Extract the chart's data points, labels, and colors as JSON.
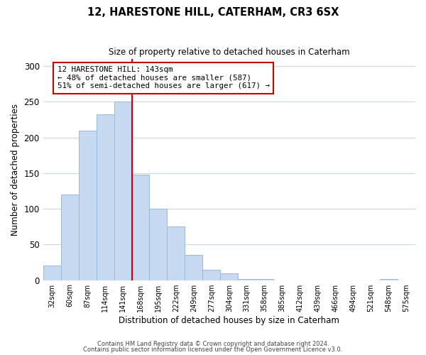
{
  "title": "12, HARESTONE HILL, CATERHAM, CR3 6SX",
  "subtitle": "Size of property relative to detached houses in Caterham",
  "xlabel": "Distribution of detached houses by size in Caterham",
  "ylabel": "Number of detached properties",
  "bar_labels": [
    "32sqm",
    "60sqm",
    "87sqm",
    "114sqm",
    "141sqm",
    "168sqm",
    "195sqm",
    "222sqm",
    "249sqm",
    "277sqm",
    "304sqm",
    "331sqm",
    "358sqm",
    "385sqm",
    "412sqm",
    "439sqm",
    "466sqm",
    "494sqm",
    "521sqm",
    "548sqm",
    "575sqm"
  ],
  "bar_values": [
    20,
    120,
    210,
    232,
    250,
    148,
    100,
    75,
    35,
    15,
    10,
    2,
    2,
    0,
    0,
    0,
    0,
    0,
    0,
    2,
    0
  ],
  "bar_color": "#c6d9f0",
  "bar_edge_color": "#9ab8d8",
  "annotation_title": "12 HARESTONE HILL: 143sqm",
  "annotation_line1": "← 48% of detached houses are smaller (587)",
  "annotation_line2": "51% of semi-detached houses are larger (617) →",
  "annotation_box_color": "#ffffff",
  "annotation_box_edge": "#cc0000",
  "red_line_bar_index": 4,
  "ylim": [
    0,
    310
  ],
  "yticks": [
    0,
    50,
    100,
    150,
    200,
    250,
    300
  ],
  "footer1": "Contains HM Land Registry data © Crown copyright and database right 2024.",
  "footer2": "Contains public sector information licensed under the Open Government Licence v3.0.",
  "bg_color": "#ffffff",
  "grid_color": "#c8d8e8"
}
